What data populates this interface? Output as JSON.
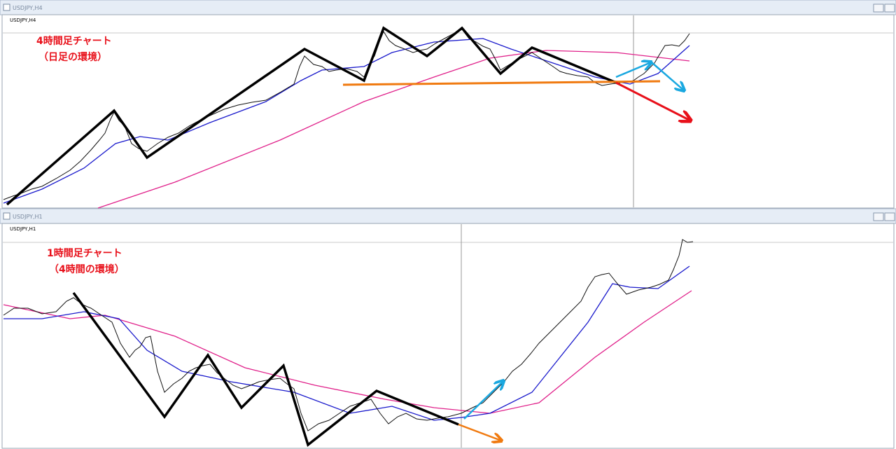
{
  "windows": [
    {
      "title": "USDJPY,H4",
      "symbol_label": "USDJPY,H4",
      "annotation": [
        "4時間足チャート",
        "（日足の環境）"
      ]
    },
    {
      "title": "USDJPY,H1",
      "symbol_label": "USDJPY,H1",
      "annotation": [
        "1時間足チャート",
        "（4時間の環境）"
      ]
    }
  ]
}
